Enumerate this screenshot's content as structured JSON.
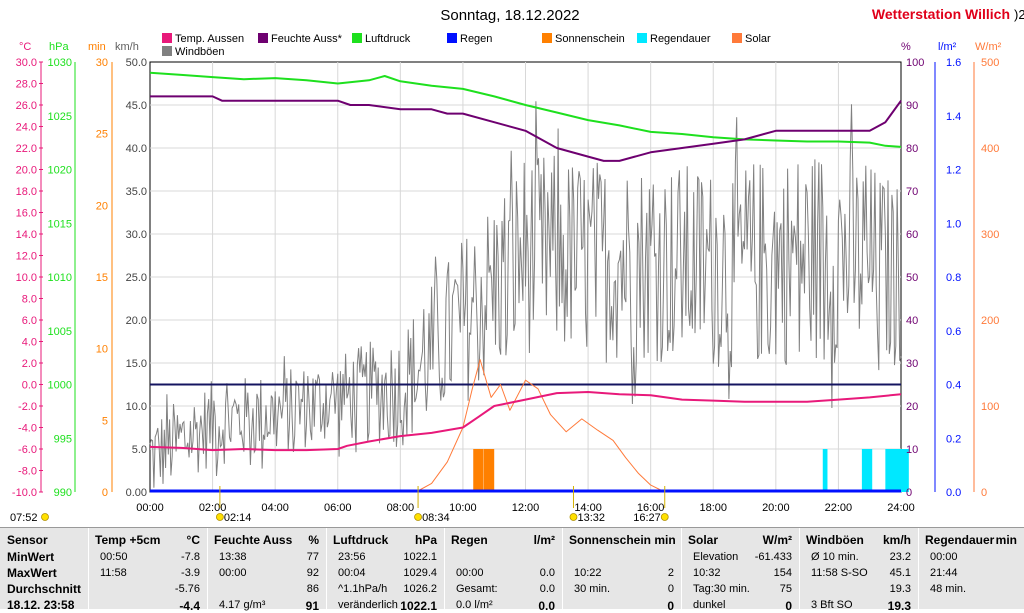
{
  "page": {
    "title": "Sonntag, 18.12.2022",
    "station": "Wetterstation Willich",
    "corner_mark": ")2"
  },
  "colors": {
    "temp": "#e8197a",
    "humidity": "#6e0070",
    "pressure": "#1ee01e",
    "rain": "#0010ff",
    "sunshine": "#ff8000",
    "raintime": "#00e8ff",
    "solar": "#ff7a3a",
    "gust": "#808080",
    "navy": "#141460"
  },
  "legend": [
    {
      "label": "Temp. Aussen",
      "color": "#e8197a"
    },
    {
      "label": "Feuchte Auss*",
      "color": "#6e0070"
    },
    {
      "label": "Luftdruck",
      "color": "#1ee01e"
    },
    {
      "label": "Regen",
      "color": "#0010ff"
    },
    {
      "label": "Sonnenschein",
      "color": "#ff8000"
    },
    {
      "label": "Regendauer",
      "color": "#00e8ff"
    },
    {
      "label": "Solar",
      "color": "#ff7a3a"
    },
    {
      "label": "Windböen",
      "color": "#808080"
    }
  ],
  "axis_units": {
    "temp": "°C",
    "pressure": "hPa",
    "sun_min": "min",
    "wind": "km/h",
    "humidity": "%",
    "rain": "l/m²",
    "solar": "W/m²"
  },
  "axis_ticks": {
    "temp": [
      "30.0",
      "28.0",
      "26.0",
      "24.0",
      "22.0",
      "20.0",
      "18.0",
      "16.0",
      "14.0",
      "12.0",
      "10.0",
      "8.0",
      "6.0",
      "4.0",
      "2.0",
      "0.0",
      "-2.0",
      "-4.0",
      "-6.0",
      "-8.0",
      "-10.0"
    ],
    "pressure": [
      "1030",
      "1025",
      "1020",
      "1015",
      "1010",
      "1005",
      "1000",
      "995",
      "990"
    ],
    "sun_min": [
      "30",
      "25",
      "20",
      "15",
      "10",
      "5",
      "0"
    ],
    "wind": [
      "50.0",
      "45.0",
      "40.0",
      "35.0",
      "30.0",
      "25.0",
      "20.0",
      "15.0",
      "10.0",
      "5.0",
      "0.00"
    ],
    "humidity": [
      "100",
      "90",
      "80",
      "70",
      "60",
      "50",
      "40",
      "30",
      "20",
      "10",
      "0"
    ],
    "rain": [
      "1.6",
      "1.4",
      "1.2",
      "1.0",
      "0.8",
      "0.6",
      "0.4",
      "0.2",
      "0.0"
    ],
    "solar": [
      "500",
      "400",
      "300",
      "200",
      "100",
      "0"
    ],
    "time": [
      "00:00",
      "02:00",
      "04:00",
      "06:00",
      "08:00",
      "10:00",
      "12:00",
      "14:00",
      "16:00",
      "18:00",
      "20:00",
      "22:00",
      "24:00"
    ]
  },
  "sun_events": {
    "sunrise": "08:34",
    "sunset": "16:27",
    "day_length": "07:52",
    "moonrise": "02:14",
    "solar_noon": "13:32"
  },
  "chart_data": {
    "type": "line",
    "x_range": [
      "00:00",
      "24:00"
    ],
    "series": [
      {
        "name": "Luftdruck",
        "unit": "hPa",
        "ylim": [
          990,
          1030
        ],
        "points": [
          [
            0,
            1029.0
          ],
          [
            1,
            1028.8
          ],
          [
            2,
            1028.6
          ],
          [
            3,
            1028.4
          ],
          [
            4,
            1028.5
          ],
          [
            5,
            1028.3
          ],
          [
            6,
            1028.0
          ],
          [
            7,
            1028.3
          ],
          [
            7.5,
            1028.7
          ],
          [
            8,
            1028.2
          ],
          [
            9,
            1027.8
          ],
          [
            10,
            1027.5
          ],
          [
            11,
            1026.8
          ],
          [
            12,
            1026.0
          ],
          [
            13,
            1025.3
          ],
          [
            14,
            1024.6
          ],
          [
            15,
            1024.1
          ],
          [
            16,
            1023.5
          ],
          [
            17,
            1023.3
          ],
          [
            18,
            1023.0
          ],
          [
            19,
            1022.8
          ],
          [
            20,
            1022.7
          ],
          [
            21,
            1022.6
          ],
          [
            22,
            1022.6
          ],
          [
            23,
            1022.5
          ],
          [
            23.5,
            1022.2
          ],
          [
            24,
            1022.1
          ]
        ]
      },
      {
        "name": "Feuchte Auss*",
        "unit": "%",
        "ylim": [
          0,
          100
        ],
        "points": [
          [
            0,
            92
          ],
          [
            1,
            92
          ],
          [
            2,
            92
          ],
          [
            2.3,
            91
          ],
          [
            3,
            91
          ],
          [
            4,
            91
          ],
          [
            5,
            91
          ],
          [
            6,
            91
          ],
          [
            6.4,
            90
          ],
          [
            7,
            90
          ],
          [
            8,
            89
          ],
          [
            9,
            89
          ],
          [
            9.5,
            88
          ],
          [
            10,
            88
          ],
          [
            11,
            86
          ],
          [
            12,
            84
          ],
          [
            13,
            80
          ],
          [
            14,
            78
          ],
          [
            14.5,
            77
          ],
          [
            15,
            77
          ],
          [
            16,
            79
          ],
          [
            17,
            80
          ],
          [
            18,
            81
          ],
          [
            19,
            82
          ],
          [
            20,
            84
          ],
          [
            21,
            84
          ],
          [
            22,
            84
          ],
          [
            23,
            84
          ],
          [
            23.5,
            86
          ],
          [
            24,
            91
          ]
        ]
      },
      {
        "name": "Temp. Aussen",
        "unit": "°C",
        "ylim": [
          -10,
          30
        ],
        "points": [
          [
            0,
            -5.8
          ],
          [
            1,
            -5.9
          ],
          [
            2,
            -6.1
          ],
          [
            3,
            -6.0
          ],
          [
            4,
            -6.1
          ],
          [
            5,
            -6.1
          ],
          [
            6,
            -6.0
          ],
          [
            6.3,
            -5.7
          ],
          [
            7,
            -5.3
          ],
          [
            8,
            -4.8
          ],
          [
            9,
            -4.5
          ],
          [
            10,
            -4.0
          ],
          [
            10.5,
            -3.0
          ],
          [
            11,
            -2.0
          ],
          [
            12,
            -1.4
          ],
          [
            13,
            -0.8
          ],
          [
            14,
            -0.7
          ],
          [
            15,
            -0.9
          ],
          [
            16,
            -1.0
          ],
          [
            17,
            -1.4
          ],
          [
            18,
            -1.5
          ],
          [
            19,
            -1.6
          ],
          [
            20,
            -1.6
          ],
          [
            21,
            -1.6
          ],
          [
            22,
            -1.4
          ],
          [
            23,
            -1.2
          ],
          [
            24,
            -0.9
          ]
        ]
      },
      {
        "name": "Solar",
        "unit": "W/m²",
        "ylim": [
          0,
          500
        ],
        "points": [
          [
            8.5,
            0
          ],
          [
            9,
            10
          ],
          [
            9.5,
            35
          ],
          [
            10,
            75
          ],
          [
            10.3,
            120
          ],
          [
            10.55,
            154
          ],
          [
            10.9,
            110
          ],
          [
            11.2,
            125
          ],
          [
            11.5,
            95
          ],
          [
            12,
            130
          ],
          [
            12.4,
            120
          ],
          [
            12.8,
            90
          ],
          [
            13.3,
            70
          ],
          [
            13.8,
            85
          ],
          [
            14.3,
            72
          ],
          [
            14.8,
            60
          ],
          [
            15.2,
            40
          ],
          [
            15.6,
            22
          ],
          [
            16.0,
            8
          ],
          [
            16.45,
            0
          ]
        ]
      },
      {
        "name": "Sonnenschein",
        "unit": "min",
        "ylim": [
          0,
          30
        ],
        "bars": [
          [
            10.33,
            3
          ],
          [
            10.67,
            3
          ]
        ]
      },
      {
        "name": "Regendauer",
        "unit": "min",
        "ylim": [
          0,
          30
        ],
        "bars": [
          [
            21.5,
            3
          ],
          [
            22.75,
            3
          ],
          [
            23.5,
            3
          ]
        ]
      },
      {
        "name": "Regen",
        "unit": "l/m²",
        "ylim": [
          0,
          1.6
        ],
        "total": 0.0
      }
    ],
    "windboeen": {
      "unit": "km/h",
      "ylim": [
        0,
        50
      ],
      "segments": [
        [
          0,
          4
        ],
        [
          2,
          8
        ],
        [
          4,
          9
        ],
        [
          6,
          11
        ],
        [
          8,
          12
        ],
        [
          10,
          20
        ],
        [
          12,
          28
        ],
        [
          14,
          27
        ],
        [
          16,
          27
        ],
        [
          18,
          26
        ],
        [
          20,
          27
        ],
        [
          22,
          28
        ],
        [
          24,
          25
        ]
      ],
      "amplitude": [
        [
          0,
          5
        ],
        [
          6,
          5
        ],
        [
          8,
          7
        ],
        [
          10,
          10
        ],
        [
          12,
          12
        ],
        [
          14,
          12
        ],
        [
          18,
          12
        ],
        [
          22,
          13
        ],
        [
          24,
          11
        ]
      ]
    }
  },
  "stats": {
    "columns": [
      {
        "header": "Sensor",
        "rows": [
          {
            "label": "MinWert"
          },
          {
            "label": "MaxWert"
          },
          {
            "label": "Durchschnitt"
          },
          {
            "label": "18.12. 23:58"
          }
        ]
      },
      {
        "header": "Temp +5cm",
        "unit": "°C",
        "rows": [
          {
            "time": "00:50",
            "value": "-7.8"
          },
          {
            "time": "11:58",
            "value": "-3.9"
          },
          {
            "time": "",
            "value": "-5.76"
          },
          {
            "time": "",
            "value": "-4.4"
          }
        ]
      },
      {
        "header": "Feuchte Auss",
        "unit": "%",
        "rows": [
          {
            "time": "13:38",
            "value": "77"
          },
          {
            "time": "00:00",
            "value": "92"
          },
          {
            "time": "",
            "value": "86"
          },
          {
            "time": "4.17 g/m³",
            "value": "91"
          }
        ]
      },
      {
        "header": "Luftdruck",
        "unit": "hPa",
        "rows": [
          {
            "time": "23:56",
            "value": "1022.1"
          },
          {
            "time": "00:04",
            "value": "1029.4"
          },
          {
            "time": "^1.1hPa/h",
            "value": "1026.2"
          },
          {
            "time": "veränderlich",
            "value": "1022.1"
          }
        ]
      },
      {
        "header": "Regen",
        "unit": "l/m²",
        "rows": [
          {
            "time": "",
            "value": ""
          },
          {
            "time": "00:00",
            "value": "0.0"
          },
          {
            "time": "Gesamt:",
            "value": "0.0"
          },
          {
            "time": "0.0 l/m²",
            "value": "0.0"
          }
        ]
      },
      {
        "header": "Sonnenschein min",
        "unit": "",
        "rows": [
          {
            "time": "",
            "value": ""
          },
          {
            "time": "10:22",
            "value": "2"
          },
          {
            "time": "30 min.",
            "value": "0"
          },
          {
            "time": "",
            "value": "0"
          }
        ]
      },
      {
        "header": "Solar",
        "unit": "W/m²",
        "rows": [
          {
            "time": "Elevation",
            "value": "-61.433"
          },
          {
            "time": "10:32",
            "value": "154"
          },
          {
            "time": "Tag:30 min.",
            "value": "75"
          },
          {
            "time": "dunkel",
            "value": "0"
          }
        ]
      },
      {
        "header": "Windböen",
        "unit": "km/h",
        "rows": [
          {
            "time": "Ø 10 min.",
            "value": "23.2"
          },
          {
            "time": "11:58  S-SO",
            "value": "45.1"
          },
          {
            "time": "",
            "value": "19.3"
          },
          {
            "time": "3 Bft SO",
            "value": "19.3"
          }
        ]
      },
      {
        "header": "Regendauer",
        "unit": "min",
        "rows": [
          {
            "time": "00:00",
            "value": ""
          },
          {
            "time": "21:44",
            "value": ""
          },
          {
            "time": "48 min.",
            "value": ""
          },
          {
            "time": "",
            "value": ""
          }
        ]
      }
    ]
  }
}
